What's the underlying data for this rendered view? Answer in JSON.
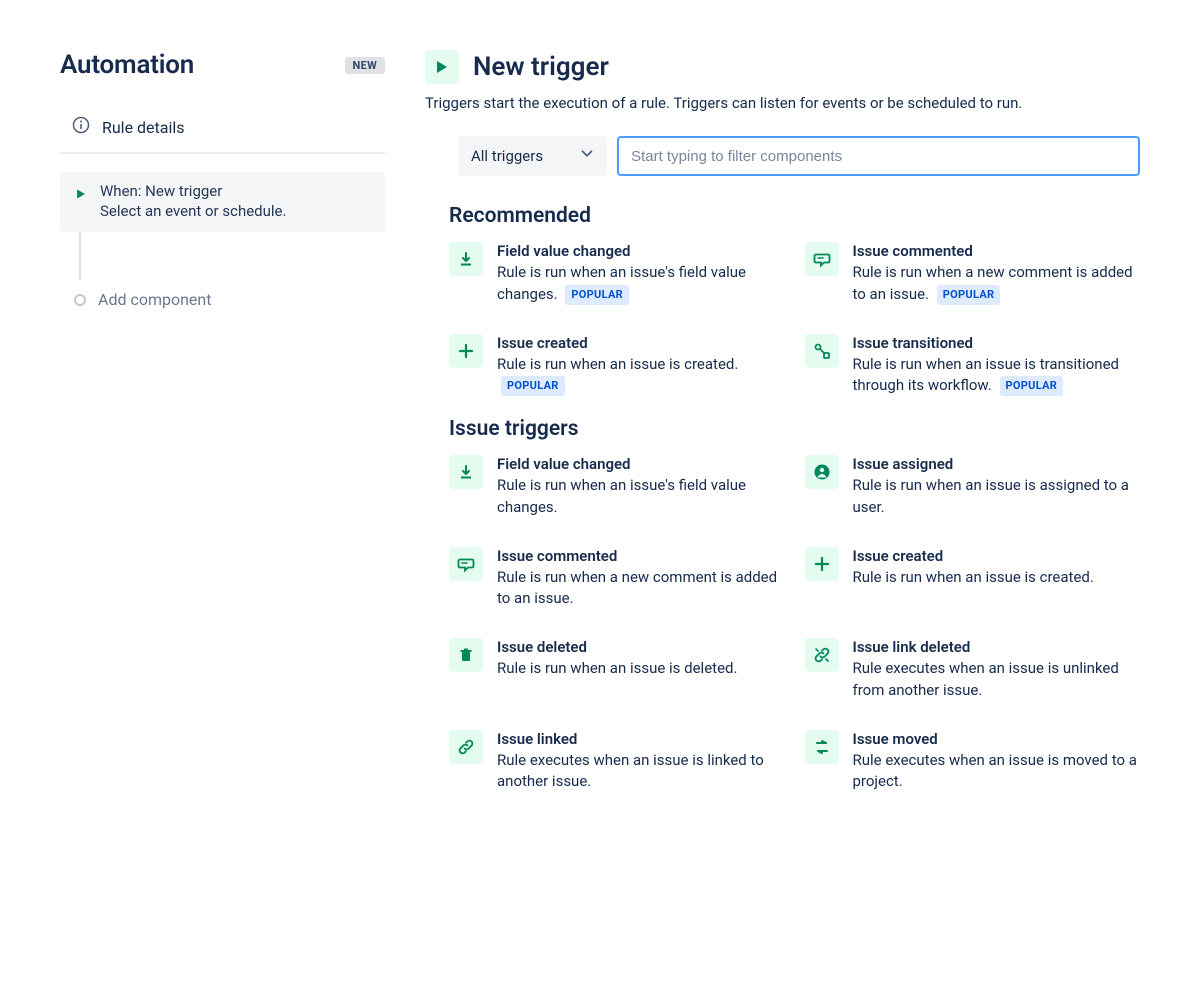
{
  "colors": {
    "text_primary": "#172b4d",
    "text_muted": "#6b778c",
    "icon_green": "#00875a",
    "icon_bg": "#e3fcef",
    "input_focus_border": "#4c9aff",
    "badge_blue_bg": "#deebff",
    "badge_blue_text": "#0052cc",
    "badge_gray_bg": "#dfe1e6",
    "panel_bg": "#f4f5f7",
    "divider": "#e9ebee"
  },
  "header": {
    "title": "Automation",
    "new_badge": "NEW"
  },
  "sidebar": {
    "rule_details_label": "Rule details",
    "step": {
      "title": "When: New trigger",
      "subtitle": "Select an event or schedule."
    },
    "add_component_label": "Add component"
  },
  "main": {
    "title": "New trigger",
    "description": "Triggers start the execution of a rule. Triggers can listen for events or be scheduled to run.",
    "dropdown_label": "All triggers",
    "filter_placeholder": "Start typing to filter components",
    "popular_label": "POPULAR"
  },
  "sections": [
    {
      "title": "Recommended",
      "items": [
        {
          "icon": "field-change",
          "title": "Field value changed",
          "desc": "Rule is run when an issue's field value changes.",
          "popular": true
        },
        {
          "icon": "comment",
          "title": "Issue commented",
          "desc": "Rule is run when a new comment is added to an issue.",
          "popular": true
        },
        {
          "icon": "plus",
          "title": "Issue created",
          "desc": "Rule is run when an issue is created.",
          "popular": true
        },
        {
          "icon": "transition",
          "title": "Issue transitioned",
          "desc": "Rule is run when an issue is transitioned through its workflow.",
          "popular": true
        }
      ]
    },
    {
      "title": "Issue triggers",
      "items": [
        {
          "icon": "field-change",
          "title": "Field value changed",
          "desc": "Rule is run when an issue's field value changes.",
          "popular": false
        },
        {
          "icon": "person",
          "title": "Issue assigned",
          "desc": "Rule is run when an issue is assigned to a user.",
          "popular": false
        },
        {
          "icon": "comment",
          "title": "Issue commented",
          "desc": "Rule is run when a new comment is added to an issue.",
          "popular": false
        },
        {
          "icon": "plus",
          "title": "Issue created",
          "desc": "Rule is run when an issue is created.",
          "popular": false
        },
        {
          "icon": "trash",
          "title": "Issue deleted",
          "desc": "Rule is run when an issue is deleted.",
          "popular": false
        },
        {
          "icon": "link-broken",
          "title": "Issue link deleted",
          "desc": "Rule executes when an issue is unlinked from another issue.",
          "popular": false
        },
        {
          "icon": "link",
          "title": "Issue linked",
          "desc": "Rule executes when an issue is linked to another issue.",
          "popular": false
        },
        {
          "icon": "move",
          "title": "Issue moved",
          "desc": "Rule executes when an issue is moved to a project.",
          "popular": false
        }
      ]
    }
  ]
}
